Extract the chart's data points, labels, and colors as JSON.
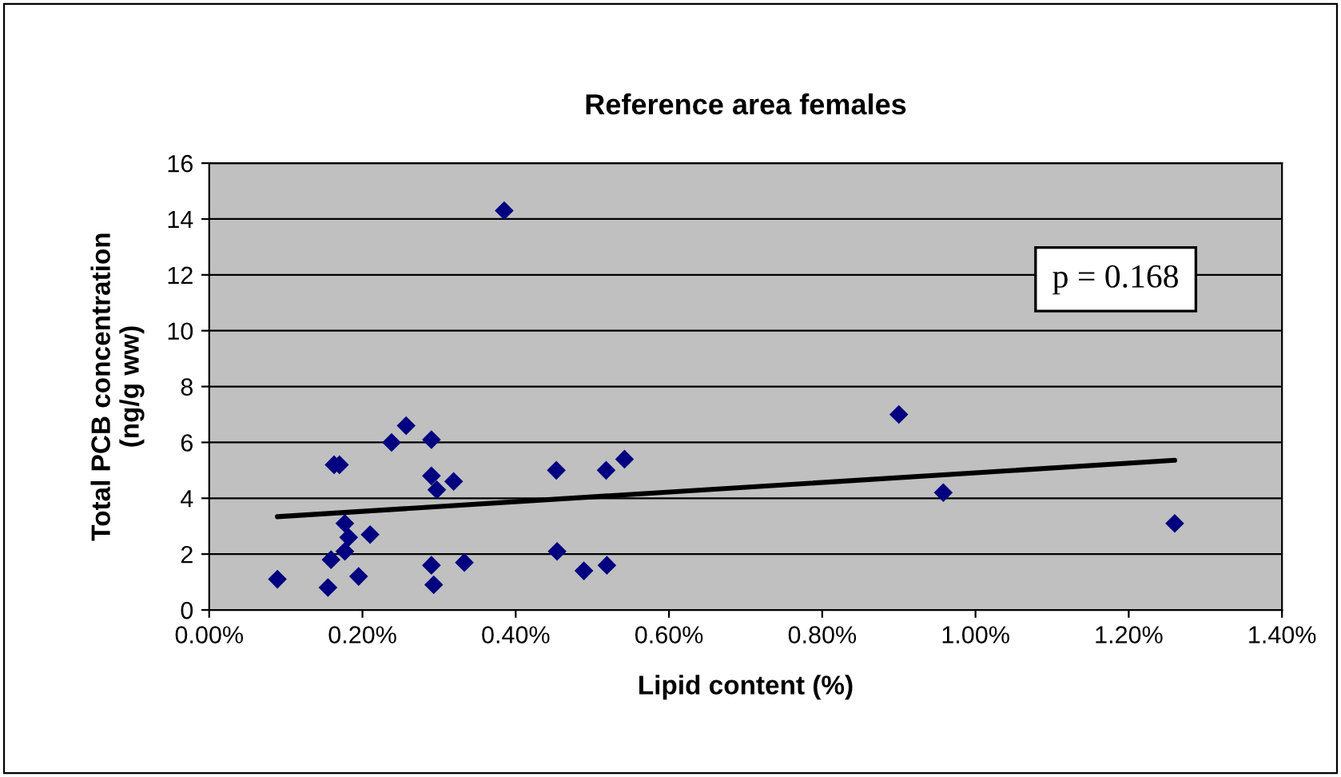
{
  "chart_data": {
    "type": "scatter",
    "title": "Reference area females",
    "xlabel": "Lipid content (%)",
    "ylabel": "Total PCB concentration\n(ng/g ww)",
    "xlim": [
      0,
      1.4
    ],
    "ylim": [
      0,
      16
    ],
    "xticks": [
      {
        "value": 0,
        "label": "0.00%"
      },
      {
        "value": 0.2,
        "label": "0.20%"
      },
      {
        "value": 0.4,
        "label": "0.40%"
      },
      {
        "value": 0.6,
        "label": "0.60%"
      },
      {
        "value": 0.8,
        "label": "0.80%"
      },
      {
        "value": 1.0,
        "label": "1.00%"
      },
      {
        "value": 1.2,
        "label": "1.20%"
      },
      {
        "value": 1.4,
        "label": "1.40%"
      }
    ],
    "yticks": [
      0,
      2,
      4,
      6,
      8,
      10,
      12,
      14,
      16
    ],
    "grid": "y",
    "series": [
      {
        "marker": "diamond",
        "color": "#000080",
        "x": [
          0.089,
          0.155,
          0.159,
          0.163,
          0.17,
          0.177,
          0.182,
          0.177,
          0.195,
          0.21,
          0.238,
          0.257,
          0.29,
          0.29,
          0.297,
          0.319,
          0.29,
          0.293,
          0.333,
          0.385,
          0.453,
          0.454,
          0.489,
          0.519,
          0.518,
          0.542,
          0.9,
          0.958,
          1.26
        ],
        "values": [
          1.1,
          0.8,
          1.8,
          5.2,
          5.2,
          3.1,
          2.6,
          2.1,
          1.2,
          2.7,
          6.0,
          6.6,
          6.1,
          4.8,
          4.3,
          4.6,
          1.6,
          0.9,
          1.7,
          14.3,
          5.0,
          2.1,
          1.4,
          1.6,
          5.0,
          5.4,
          7.0,
          4.2,
          3.1
        ]
      },
      {
        "type": "line",
        "color": "#000000",
        "x": [
          0.089,
          1.26
        ],
        "values": [
          3.34,
          5.36
        ]
      }
    ],
    "annotations": [
      "p = 0.168"
    ]
  }
}
